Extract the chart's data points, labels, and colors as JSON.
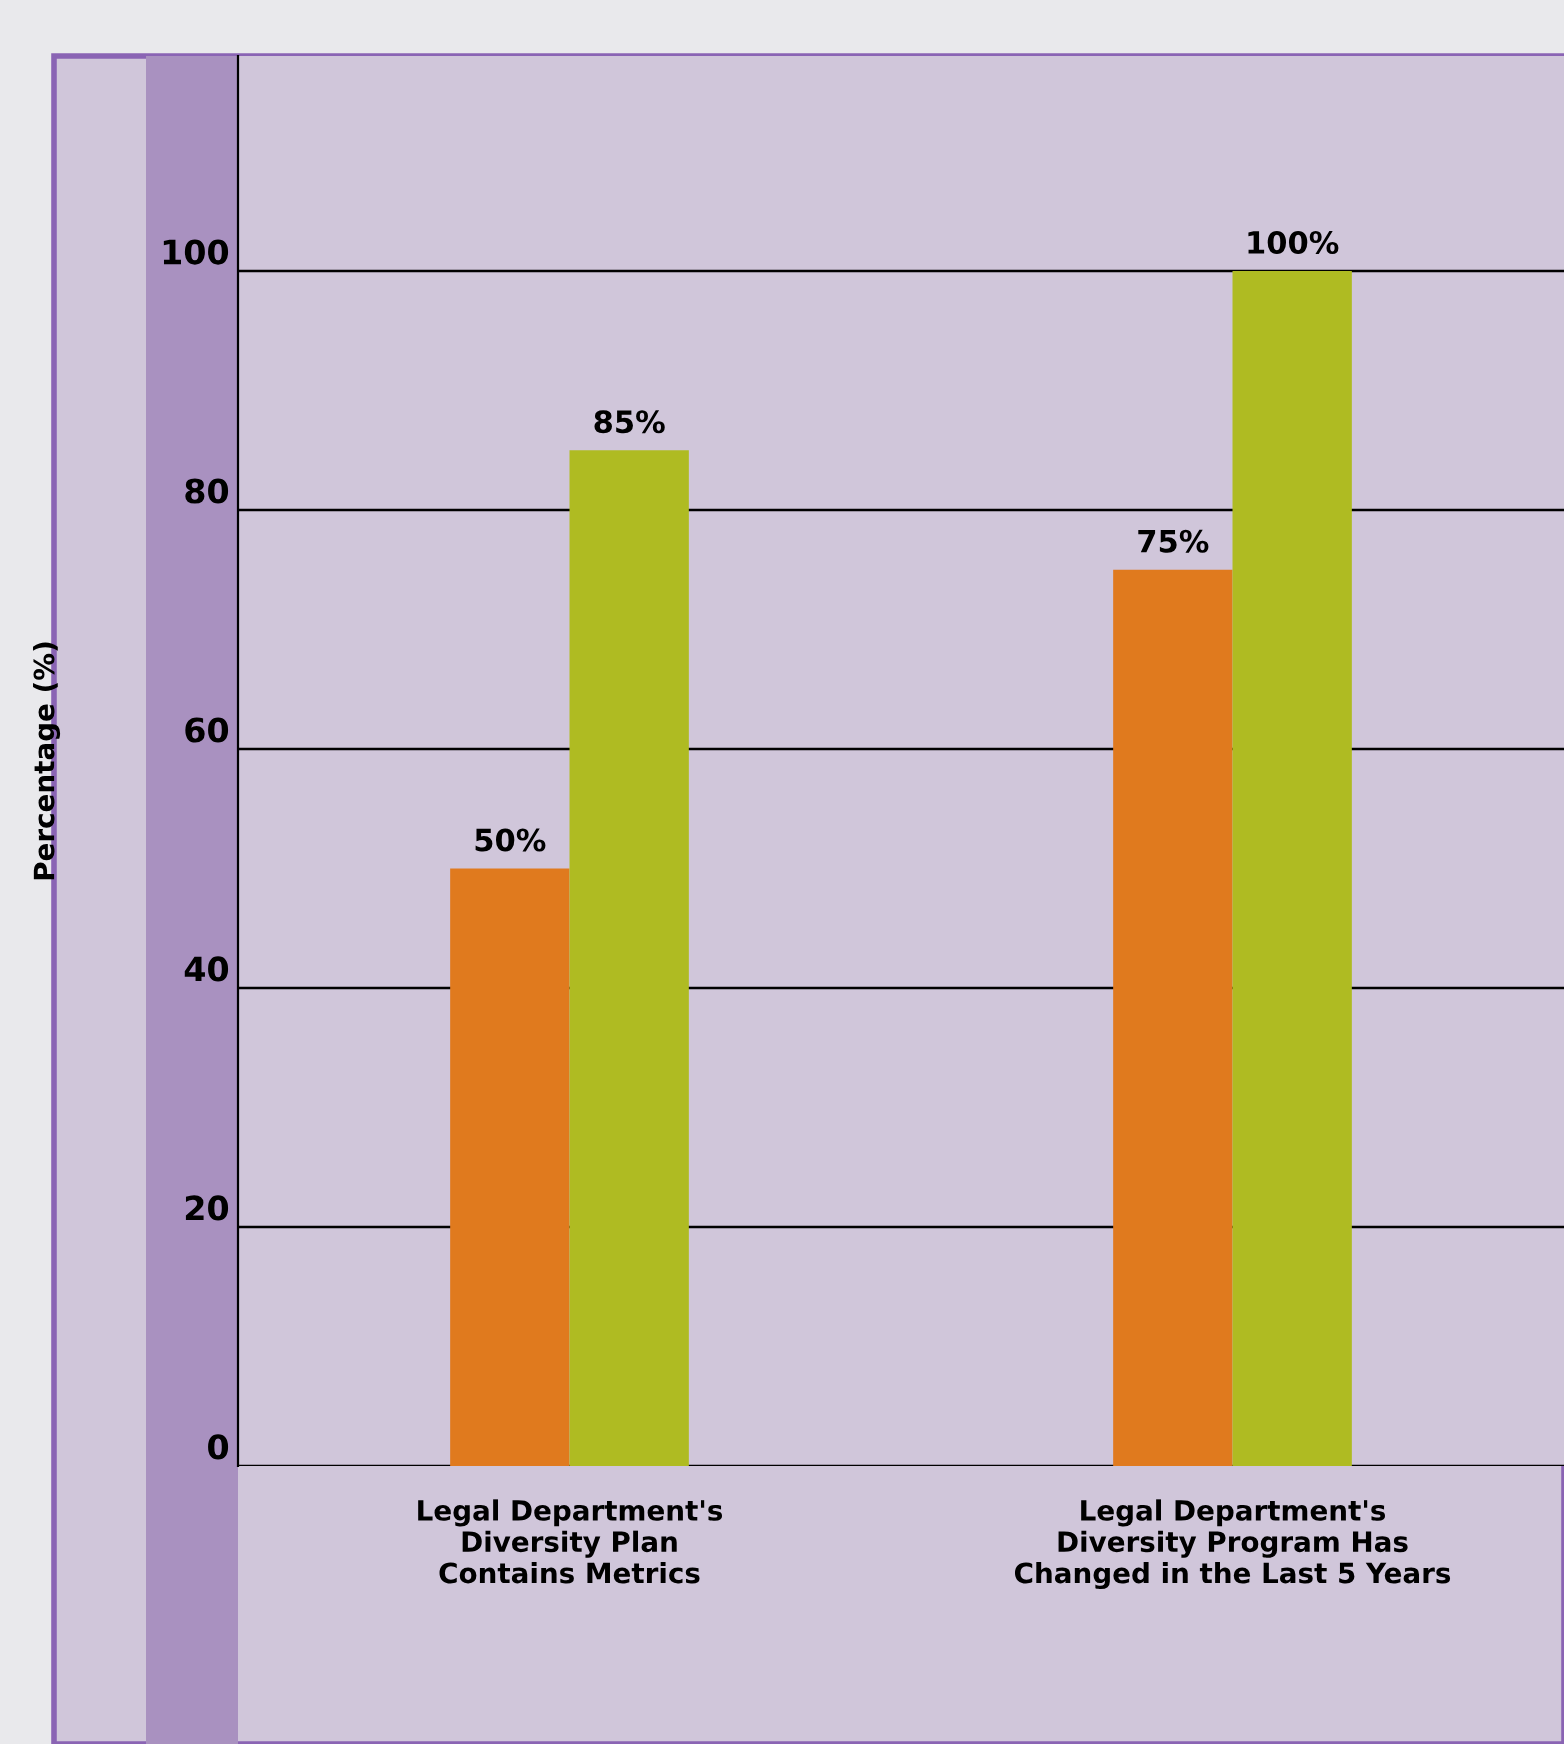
{
  "chart_data": {
    "type": "bar",
    "ylabel": "Percentage (%)",
    "categories": [
      "Legal Department's\nDiversity Plan\nContains Metrics",
      "Legal Department's\nDiversity Program Has\nChanged in the Last 5 Years"
    ],
    "series": [
      {
        "color": "#e07a1e",
        "values": [
          50,
          75
        ],
        "value_labels": [
          "50%",
          "75%"
        ]
      },
      {
        "color": "#afbb22",
        "values": [
          85,
          100
        ],
        "value_labels": [
          "85%",
          "100%"
        ]
      }
    ],
    "ylim": [
      0,
      118
    ],
    "yticks": [
      0,
      20,
      40,
      60,
      80,
      100
    ],
    "grid": "y",
    "legend": false
  }
}
